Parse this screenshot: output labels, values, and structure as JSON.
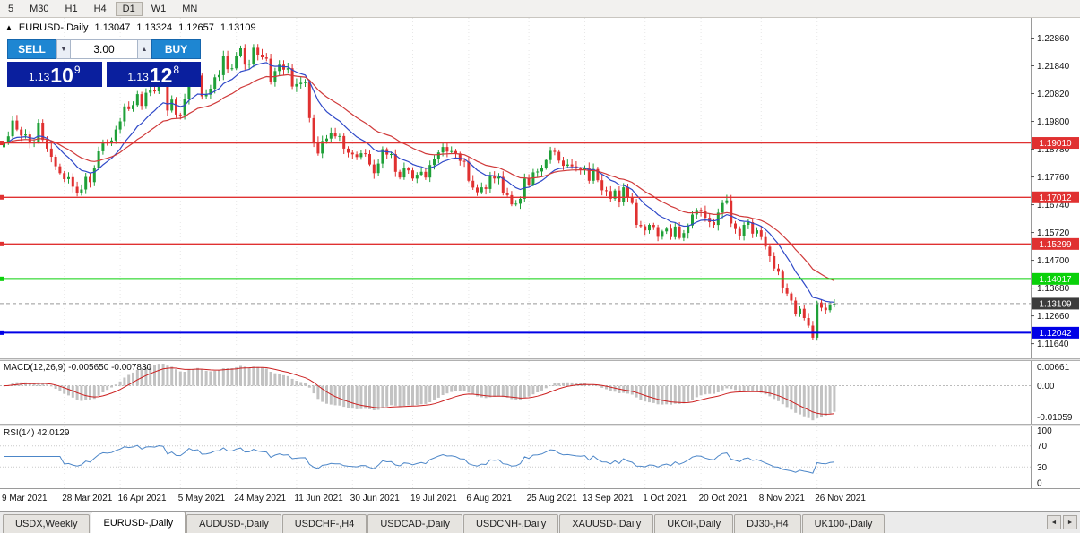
{
  "toolbar": {
    "timeframes": [
      "5",
      "M30",
      "H1",
      "H4",
      "D1",
      "W1",
      "MN"
    ],
    "active": "D1"
  },
  "header": {
    "symbol": "EURUSD-,Daily",
    "open": "1.13047",
    "high": "1.13324",
    "low": "1.12657",
    "close": "1.13109"
  },
  "trade_panel": {
    "sell_label": "SELL",
    "buy_label": "BUY",
    "volume": "3.00",
    "sell_price": {
      "prefix": "1.13",
      "big": "10",
      "sup": "9"
    },
    "buy_price": {
      "prefix": "1.13",
      "big": "12",
      "sup": "8"
    },
    "button_color": "#1e86d2",
    "price_box_color": "#0a1f9e"
  },
  "icons": {
    "header_arrow": "▲",
    "spinner_down": "▼",
    "spinner_up": "▲",
    "scroll_left": "◄",
    "scroll_right": "►"
  },
  "macd": {
    "label": "MACD(12,26,9) -0.005650 -0.007830",
    "axis": [
      "0.00661",
      "0.00",
      "-0.01059"
    ],
    "params": [
      12,
      26,
      9
    ],
    "values": [
      "-0.005650",
      "-0.007830"
    ]
  },
  "rsi": {
    "label": "RSI(14) 42.0129",
    "axis": [
      "100",
      "70",
      "30",
      "0"
    ],
    "period": 14,
    "value": "42.0129",
    "levels": [
      30,
      70
    ]
  },
  "tabs": {
    "items": [
      "USDX,Weekly",
      "EURUSD-,Daily",
      "AUDUSD-,Daily",
      "USDCHF-,H4",
      "USDCAD-,Daily",
      "USDCNH-,Daily",
      "XAUUSD-,Daily",
      "UKOil-,Daily",
      "DJ30-,H4",
      "UK100-,Daily"
    ],
    "active_index": 1
  },
  "chart_data": {
    "type": "candlestick",
    "title": "EURUSD-,Daily",
    "y_range": [
      1.111,
      1.236
    ],
    "y_ticks": [
      "1.22860",
      "1.21840",
      "1.20820",
      "1.19800",
      "1.18780",
      "1.17760",
      "1.16740",
      "1.15720",
      "1.14700",
      "1.13680",
      "1.12660",
      "1.11640"
    ],
    "x_labels": [
      {
        "i": 0,
        "label": "9 Mar 2021"
      },
      {
        "i": 14,
        "label": "28 Mar 2021"
      },
      {
        "i": 27,
        "label": "16 Apr 2021"
      },
      {
        "i": 41,
        "label": "5 May 2021"
      },
      {
        "i": 54,
        "label": "24 May 2021"
      },
      {
        "i": 68,
        "label": "11 Jun 2021"
      },
      {
        "i": 81,
        "label": "30 Jun 2021"
      },
      {
        "i": 95,
        "label": "19 Jul 2021"
      },
      {
        "i": 108,
        "label": "6 Aug 2021"
      },
      {
        "i": 122,
        "label": "25 Aug 2021"
      },
      {
        "i": 135,
        "label": "13 Sep 2021"
      },
      {
        "i": 149,
        "label": "1 Oct 2021"
      },
      {
        "i": 162,
        "label": "20 Oct 2021"
      },
      {
        "i": 176,
        "label": "8 Nov 2021"
      },
      {
        "i": 189,
        "label": "26 Nov 2021"
      }
    ],
    "closes": [
      1.19,
      1.1925,
      1.1983,
      1.195,
      1.1928,
      1.1932,
      1.1899,
      1.1905,
      1.1975,
      1.1912,
      1.188,
      1.185,
      1.1815,
      1.179,
      1.1768,
      1.1775,
      1.174,
      1.1716,
      1.173,
      1.1776,
      1.1757,
      1.181,
      1.187,
      1.1905,
      1.1899,
      1.191,
      1.195,
      1.198,
      1.2035,
      1.2025,
      1.204,
      1.208,
      1.2037,
      1.2085,
      1.2095,
      1.209,
      1.2125,
      1.2118,
      1.202,
      1.206,
      1.2005,
      1.2003,
      1.2062,
      1.216,
      1.2128,
      1.2148,
      1.2072,
      1.2078,
      1.21,
      1.2142,
      1.215,
      1.222,
      1.2172,
      1.2175,
      1.222,
      1.2248,
      1.2188,
      1.2192,
      1.225,
      1.2225,
      1.2215,
      1.221,
      1.2125,
      1.2165,
      1.2188,
      1.217,
      1.2175,
      1.2108,
      1.2117,
      1.2122,
      1.2124,
      1.1992,
      1.1905,
      1.1862,
      1.1908,
      1.1917,
      1.1936,
      1.1925,
      1.1926,
      1.188,
      1.1865,
      1.1859,
      1.1849,
      1.1863,
      1.186,
      1.1822,
      1.179,
      1.1825,
      1.1878,
      1.1858,
      1.186,
      1.1795,
      1.1774,
      1.1808,
      1.18,
      1.177,
      1.1784,
      1.1795,
      1.1774,
      1.182,
      1.1842,
      1.1866,
      1.1886,
      1.1869,
      1.1871,
      1.1862,
      1.1835,
      1.1832,
      1.1762,
      1.1737,
      1.172,
      1.1738,
      1.1732,
      1.1778,
      1.177,
      1.1776,
      1.1716,
      1.1709,
      1.1675,
      1.1678,
      1.1696,
      1.177,
      1.1748,
      1.1793,
      1.1796,
      1.1808,
      1.1838,
      1.1872,
      1.1868,
      1.1836,
      1.1817,
      1.1822,
      1.1815,
      1.1808,
      1.1804,
      1.181,
      1.1762,
      1.1805,
      1.1764,
      1.1727,
      1.1724,
      1.1696,
      1.1726,
      1.1685,
      1.1738,
      1.17,
      1.168,
      1.16,
      1.1595,
      1.158,
      1.16,
      1.1592,
      1.1556,
      1.1576,
      1.1586,
      1.1555,
      1.1594,
      1.1552,
      1.157,
      1.1598,
      1.1638,
      1.1655,
      1.165,
      1.1626,
      1.161,
      1.16,
      1.1645,
      1.168,
      1.169,
      1.1605,
      1.1585,
      1.156,
      1.16,
      1.161,
      1.1568,
      1.158,
      1.1555,
      1.152,
      1.1485,
      1.144,
      1.1428,
      1.137,
      1.1348,
      1.1322,
      1.1272,
      1.1292,
      1.1258,
      1.123,
      1.1186,
      1.1315,
      1.1296,
      1.1287,
      1.1305,
      1.1311
    ],
    "sr_lines": [
      {
        "price": 1.1901,
        "label": "1.19010",
        "color": "#e03131",
        "width": 1.4
      },
      {
        "price": 1.17012,
        "label": "1.17012",
        "color": "#e03131",
        "width": 1.4
      },
      {
        "price": 1.15299,
        "label": "1.15299",
        "color": "#e03131",
        "width": 1.4
      },
      {
        "price": 1.14017,
        "label": "1.14017",
        "color": "#0ad10a",
        "width": 2
      },
      {
        "price": 1.12042,
        "label": "1.12042",
        "color": "#0000e6",
        "width": 2
      }
    ],
    "bid": {
      "price": 1.13109,
      "label": "1.13109",
      "color": "#3c3c3c"
    },
    "colors": {
      "up": "#1fa038",
      "down": "#e03131",
      "ma_fast": "#2f49c8",
      "ma_slow": "#d03a3a",
      "macd_hist": "#c2c2c2",
      "macd_signal": "#cc2020",
      "rsi": "#4c86c8"
    }
  }
}
